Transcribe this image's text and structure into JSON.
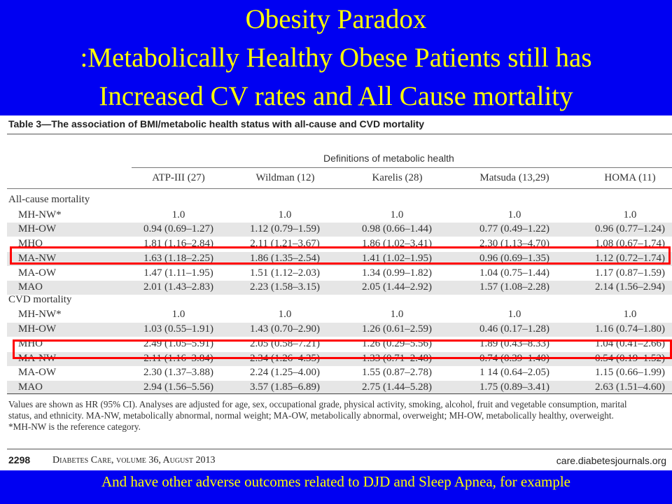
{
  "title": {
    "line1": "Obesity Paradox",
    "line2": ":Metabolically Healthy  Obese Patients still has",
    "line3": "Increased CV rates and All Cause mortality"
  },
  "table": {
    "caption": "Table 3—The association of BMI/metabolic health status with all-cause and CVD mortality",
    "group_header": "Definitions of metabolic health",
    "columns": [
      "ATP-III (27)",
      "Wildman (12)",
      "Karelis (28)",
      "Matsuda (13,29)",
      "HOMA (11)"
    ],
    "sections": [
      {
        "label": "All-cause mortality",
        "rows": [
          {
            "label": "MH-NW*",
            "values": [
              "1.0",
              "1.0",
              "1.0",
              "1.0",
              "1.0"
            ]
          },
          {
            "label": "MH-OW",
            "values": [
              "0.94 (0.69–1.27)",
              "1.12 (0.79–1.59)",
              "0.98 (0.66–1.44)",
              "0.77 (0.49–1.22)",
              "0.96 (0.77–1.24)"
            ]
          },
          {
            "label": "MHO",
            "values": [
              "1.81 (1.16–2.84)",
              "2.11 (1.21–3.67)",
              "1.86 (1.02–3.41)",
              "2.30 (1.13–4.70)",
              "1.08 (0.67–1.74)"
            ]
          },
          {
            "label": "MA-NW",
            "values": [
              "1.63 (1.18–2.25)",
              "1.86 (1.35–2.54)",
              "1.41 (1.02–1.95)",
              "0.96 (0.69–1.35)",
              "1.12 (0.72–1.74)"
            ]
          },
          {
            "label": "MA-OW",
            "values": [
              "1.47 (1.11–1.95)",
              "1.51 (1.12–2.03)",
              "1.34 (0.99–1.82)",
              "1.04 (0.75–1.44)",
              "1.17 (0.87–1.59)"
            ]
          },
          {
            "label": "MAO",
            "values": [
              "2.01 (1.43–2.83)",
              "2.23 (1.58–3.15)",
              "2.05 (1.44–2.92)",
              "1.57 (1.08–2.28)",
              "2.14 (1.56–2.94)"
            ]
          }
        ]
      },
      {
        "label": "CVD mortality",
        "rows": [
          {
            "label": "MH-NW*",
            "values": [
              "1.0",
              "1.0",
              "1.0",
              "1.0",
              "1.0"
            ]
          },
          {
            "label": "MH-OW",
            "values": [
              "1.03 (0.55–1.91)",
              "1.43 (0.70–2.90)",
              "1.26 (0.61–2.59)",
              "0.46 (0.17–1.28)",
              "1.16 (0.74–1.80)"
            ]
          },
          {
            "label": "MHO",
            "values": [
              "2.49 (1.05–5.91)",
              "2.05 (0.58–7.21)",
              "1.26 (0.29–5.56)",
              "1.89 (0.43–8.33)",
              "1.04 (0.41–2.66)"
            ]
          },
          {
            "label": "MA-NW",
            "values": [
              "2.11 (1.16–3.84)",
              "2.34 (1.26–4.35)",
              "1.33 (0.71–2.48)",
              "0.74 (0.39–1.40)",
              "0.54 (0.19–1.52)"
            ]
          },
          {
            "label": "MA-OW",
            "values": [
              "2.30 (1.37–3.88)",
              "2.24 (1.25–4.00)",
              "1.55 (0.87–2.78)",
              "1 14 (0.64–2.05)",
              "1.15 (0.66–1.99)"
            ]
          },
          {
            "label": "MAO",
            "values": [
              "2.94 (1.56–5.56)",
              "3.57 (1.85–6.89)",
              "2.75 (1.44–5.28)",
              "1.75 (0.89–3.41)",
              "2.63 (1.51–4.60)"
            ]
          }
        ]
      }
    ],
    "footnote_lines": [
      "Values are shown as HR (95% CI). Analyses are adjusted for age, sex, occupational grade, physical activity, smoking, alcohol, fruit and vegetable consumption, marital",
      "status, and ethnicity. MA-NW, metabolically abnormal, normal weight; MA-OW, metabolically abnormal, overweight; MH-OW, metabolically healthy, overweight.",
      "*MH-NW is the reference category."
    ]
  },
  "journal_footer": {
    "page": "2298",
    "citation": "Diabetes Care, volume 36, August 2013",
    "url": "care.diabetesjournals.org"
  },
  "bottom_note": "And  have other adverse outcomes related to DJD and Sleep Apnea, for example",
  "colors": {
    "slide_background": "#0000f2",
    "title_text": "#ffff00",
    "highlight_border": "#ff0000",
    "row_shading": "#e6e6e6"
  }
}
